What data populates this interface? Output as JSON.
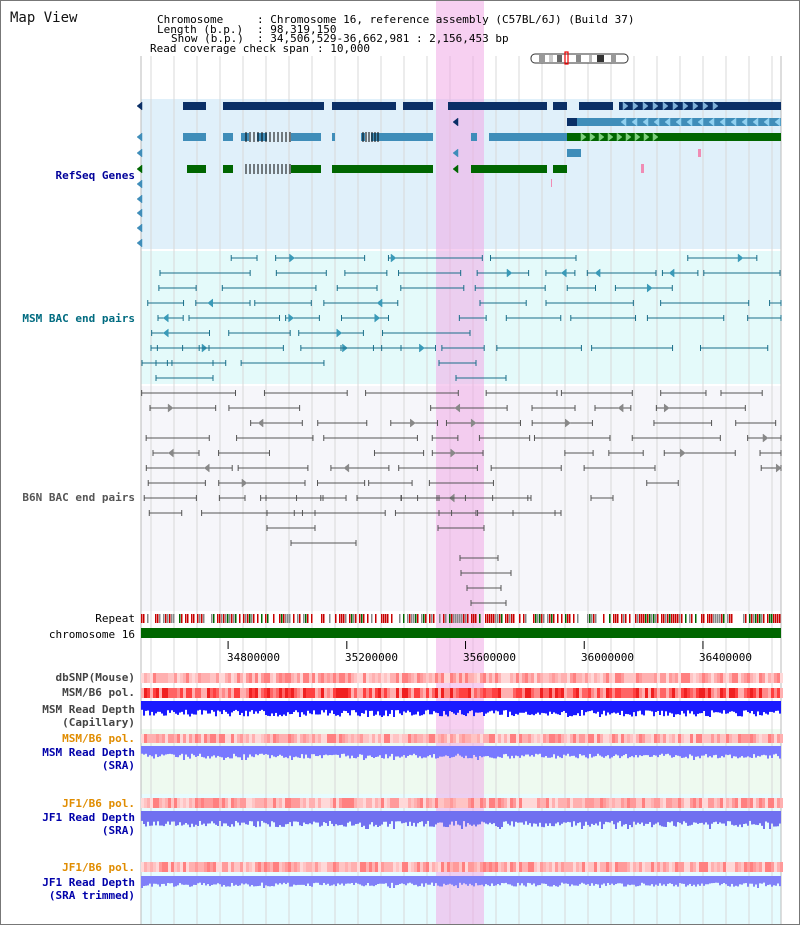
{
  "page_title": "Map View",
  "info": {
    "chromosome_key": "Chromosome",
    "chromosome_val": ": Chromosome 16, reference assembly (C57BL/6J) (Build 37)",
    "length_key": "Length (b.p.)",
    "length_val": ": 98,319,150",
    "show_key": "Show (b.p.)",
    "show_val": ": 34,506,529-36,662,981 : 2,156,453 bp",
    "coverage_key": "Read coverage check span",
    "coverage_val": ": 10,000"
  },
  "tracks": {
    "refseq": "RefSeq Genes",
    "msm_bac": "MSM BAC end pairs",
    "b6n_bac": "B6N BAC end pairs",
    "repeat": "Repeat",
    "chromosome": "chromosome 16",
    "dbsnp": "dbSNP(Mouse)",
    "msm_b6_pol_1": "MSM/B6 pol.",
    "msm_read_depth_cap": "MSM Read Depth\n(Capillary)",
    "msm_b6_pol_2": "MSM/B6 pol.",
    "msm_read_depth_sra": "MSM Read Depth\n(SRA)",
    "jf1_b6_pol_1": "JF1/B6 pol.",
    "jf1_read_depth_sra": "JF1 Read Depth\n(SRA)",
    "jf1_b6_pol_2": "JF1/B6 pol.",
    "jf1_read_depth_trim": "JF1 Read Depth\n(SRA trimmed)"
  },
  "ruler": {
    "ticks": [
      "34800000",
      "35200000",
      "35600000",
      "36000000",
      "36400000"
    ],
    "tick_values": [
      34800000,
      35200000,
      35600000,
      36000000,
      36400000
    ]
  },
  "colors": {
    "refseq_bg": "#e0f0fa",
    "msm_bg": "#e4fafa",
    "b6n_bg": "#f6f6fa",
    "gene_dark": "#0a2f66",
    "gene_mid": "#3f8db9",
    "gene_green": "#006600",
    "highlight": "#f0aae6",
    "msm_pair": "#1a6f8a",
    "b6n_pair": "#555555",
    "chromosome_bar": "#006600",
    "depth_blue": "#1a1aff"
  }
}
